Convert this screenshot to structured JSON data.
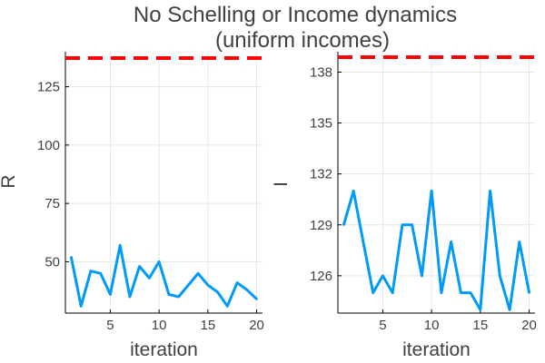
{
  "chart_data": {
    "title_line1": "No Schelling or Income dynamics",
    "title_line2": "(uniform incomes)",
    "panels": [
      {
        "type": "line",
        "xlabel": "iteration",
        "ylabel": "R",
        "xlim": [
          0.4,
          20.6
        ],
        "ylim": [
          28,
          140
        ],
        "xticks": [
          5,
          10,
          15,
          20
        ],
        "yticks": [
          50,
          75,
          100,
          125
        ],
        "x": [
          1,
          2,
          3,
          4,
          5,
          6,
          7,
          8,
          9,
          10,
          11,
          12,
          13,
          14,
          15,
          16,
          17,
          18,
          19,
          20
        ],
        "series": [
          {
            "values": [
              52,
              31,
              46,
              45,
              36,
              57,
              35,
              48,
              43,
              50,
              36,
              35,
              40,
              45,
              40,
              37,
              31,
              41,
              38,
              34
            ]
          }
        ],
        "reference_line": 140,
        "series_color": "#009af9",
        "reference_color": "#ff0000"
      },
      {
        "type": "line",
        "xlabel": "iteration",
        "ylabel": "I",
        "xlim": [
          0.4,
          20.6
        ],
        "ylim": [
          123.8,
          139.2
        ],
        "xticks": [
          5,
          10,
          15,
          20
        ],
        "yticks": [
          126,
          129,
          132,
          135,
          138
        ],
        "yticklabels": [
          "126",
          "129",
          "132",
          "135",
          "138"
        ],
        "x": [
          1,
          2,
          3,
          4,
          5,
          6,
          7,
          8,
          9,
          10,
          11,
          12,
          13,
          14,
          15,
          16,
          17,
          18,
          19,
          20
        ],
        "series": [
          {
            "values": [
              129,
              131,
              128,
              125,
              126,
              125,
              129,
              129,
              126,
              131,
              125,
              128,
              125,
              125,
              124,
              131,
              126,
              124,
              128,
              125
            ]
          }
        ],
        "reference_line": 139.2,
        "series_color": "#009af9",
        "reference_color": "#ff0000"
      }
    ]
  }
}
